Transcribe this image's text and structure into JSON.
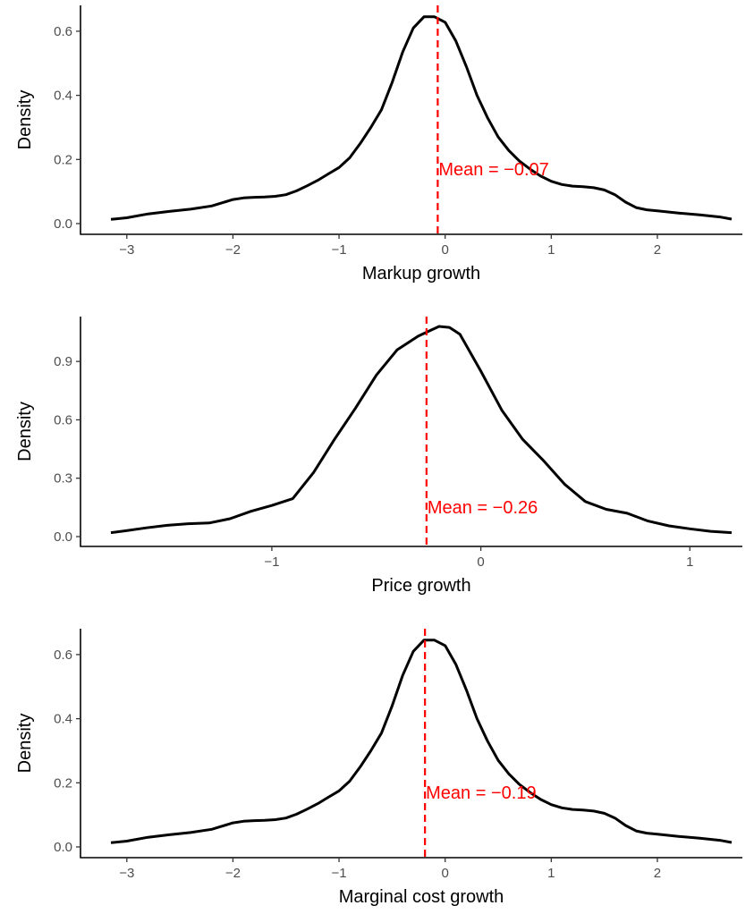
{
  "colors": {
    "density_line": "#000000",
    "mean_line": "#ff0000",
    "mean_text": "#ff0000",
    "tick_text": "#4d4d4d"
  },
  "chart_data": [
    {
      "type": "line",
      "xlabel": "Markup growth",
      "ylabel": "Density",
      "xlim": [
        -3.15,
        2.7
      ],
      "ylim": [
        0,
        0.65
      ],
      "xticks": [
        -3,
        -2,
        -1,
        0,
        1,
        2
      ],
      "yticks": [
        0.0,
        0.2,
        0.4,
        0.6
      ],
      "ytick_labels": [
        "0.0",
        "0.2",
        "0.4",
        "0.6"
      ],
      "grid": false,
      "mean": -0.07,
      "mean_label": "Mean = −0.07",
      "density": {
        "x": [
          -3.15,
          -3.0,
          -2.8,
          -2.6,
          -2.4,
          -2.2,
          -2.1,
          -2.0,
          -1.9,
          -1.8,
          -1.7,
          -1.6,
          -1.5,
          -1.4,
          -1.3,
          -1.2,
          -1.1,
          -1.0,
          -0.9,
          -0.8,
          -0.7,
          -0.6,
          -0.5,
          -0.4,
          -0.3,
          -0.2,
          -0.1,
          0.0,
          0.1,
          0.2,
          0.3,
          0.4,
          0.5,
          0.6,
          0.7,
          0.8,
          0.9,
          1.0,
          1.1,
          1.2,
          1.3,
          1.4,
          1.5,
          1.6,
          1.7,
          1.8,
          1.9,
          2.0,
          2.2,
          2.4,
          2.6,
          2.7
        ],
        "y": [
          0.013,
          0.018,
          0.03,
          0.038,
          0.045,
          0.055,
          0.065,
          0.075,
          0.08,
          0.082,
          0.083,
          0.085,
          0.09,
          0.102,
          0.118,
          0.135,
          0.155,
          0.175,
          0.205,
          0.25,
          0.3,
          0.355,
          0.44,
          0.535,
          0.61,
          0.645,
          0.645,
          0.628,
          0.57,
          0.49,
          0.4,
          0.33,
          0.27,
          0.228,
          0.195,
          0.17,
          0.148,
          0.132,
          0.122,
          0.117,
          0.115,
          0.112,
          0.105,
          0.09,
          0.067,
          0.05,
          0.043,
          0.04,
          0.033,
          0.027,
          0.02,
          0.014
        ]
      }
    },
    {
      "type": "line",
      "xlabel": "Price growth",
      "ylabel": "Density",
      "xlim": [
        -1.77,
        1.2
      ],
      "ylim": [
        0,
        1.08
      ],
      "xticks": [
        -1,
        0,
        1
      ],
      "yticks": [
        0.0,
        0.3,
        0.6,
        0.9
      ],
      "ytick_labels": [
        "0.0",
        "0.3",
        "0.6",
        "0.9"
      ],
      "grid": false,
      "mean": -0.26,
      "mean_label": "Mean = −0.26",
      "density": {
        "x": [
          -1.77,
          -1.7,
          -1.6,
          -1.5,
          -1.4,
          -1.3,
          -1.2,
          -1.1,
          -1.0,
          -0.9,
          -0.8,
          -0.7,
          -0.6,
          -0.5,
          -0.4,
          -0.3,
          -0.26,
          -0.2,
          -0.15,
          -0.1,
          0.0,
          0.1,
          0.2,
          0.3,
          0.4,
          0.5,
          0.6,
          0.7,
          0.8,
          0.9,
          1.0,
          1.1,
          1.2
        ],
        "y": [
          0.02,
          0.03,
          0.045,
          0.058,
          0.066,
          0.07,
          0.092,
          0.13,
          0.16,
          0.195,
          0.33,
          0.5,
          0.66,
          0.83,
          0.96,
          1.03,
          1.05,
          1.08,
          1.075,
          1.04,
          0.85,
          0.65,
          0.5,
          0.39,
          0.27,
          0.18,
          0.14,
          0.12,
          0.08,
          0.055,
          0.04,
          0.027,
          0.02
        ]
      }
    },
    {
      "type": "line",
      "xlabel": "Marginal cost growth",
      "ylabel": "Density",
      "xlim": [
        -3.15,
        2.7
      ],
      "ylim": [
        0,
        0.65
      ],
      "xticks": [
        -3,
        -2,
        -1,
        0,
        1,
        2
      ],
      "yticks": [
        0.0,
        0.2,
        0.4,
        0.6
      ],
      "ytick_labels": [
        "0.0",
        "0.2",
        "0.4",
        "0.6"
      ],
      "grid": false,
      "mean": -0.19,
      "mean_label": "Mean = −0.19",
      "density": {
        "x": [
          -3.15,
          -3.0,
          -2.8,
          -2.6,
          -2.4,
          -2.2,
          -2.1,
          -2.0,
          -1.9,
          -1.8,
          -1.7,
          -1.6,
          -1.5,
          -1.4,
          -1.3,
          -1.2,
          -1.1,
          -1.0,
          -0.9,
          -0.8,
          -0.7,
          -0.6,
          -0.5,
          -0.4,
          -0.3,
          -0.2,
          -0.1,
          0.0,
          0.1,
          0.2,
          0.3,
          0.4,
          0.5,
          0.6,
          0.7,
          0.8,
          0.9,
          1.0,
          1.1,
          1.2,
          1.3,
          1.4,
          1.5,
          1.6,
          1.7,
          1.8,
          1.9,
          2.0,
          2.2,
          2.4,
          2.6,
          2.7
        ],
        "y": [
          0.013,
          0.018,
          0.03,
          0.038,
          0.045,
          0.055,
          0.065,
          0.075,
          0.08,
          0.082,
          0.083,
          0.085,
          0.09,
          0.102,
          0.118,
          0.135,
          0.155,
          0.175,
          0.205,
          0.25,
          0.3,
          0.355,
          0.44,
          0.535,
          0.61,
          0.645,
          0.645,
          0.628,
          0.57,
          0.49,
          0.4,
          0.33,
          0.27,
          0.228,
          0.195,
          0.17,
          0.148,
          0.132,
          0.122,
          0.117,
          0.115,
          0.112,
          0.105,
          0.09,
          0.067,
          0.05,
          0.043,
          0.04,
          0.033,
          0.027,
          0.02,
          0.014
        ]
      }
    }
  ]
}
